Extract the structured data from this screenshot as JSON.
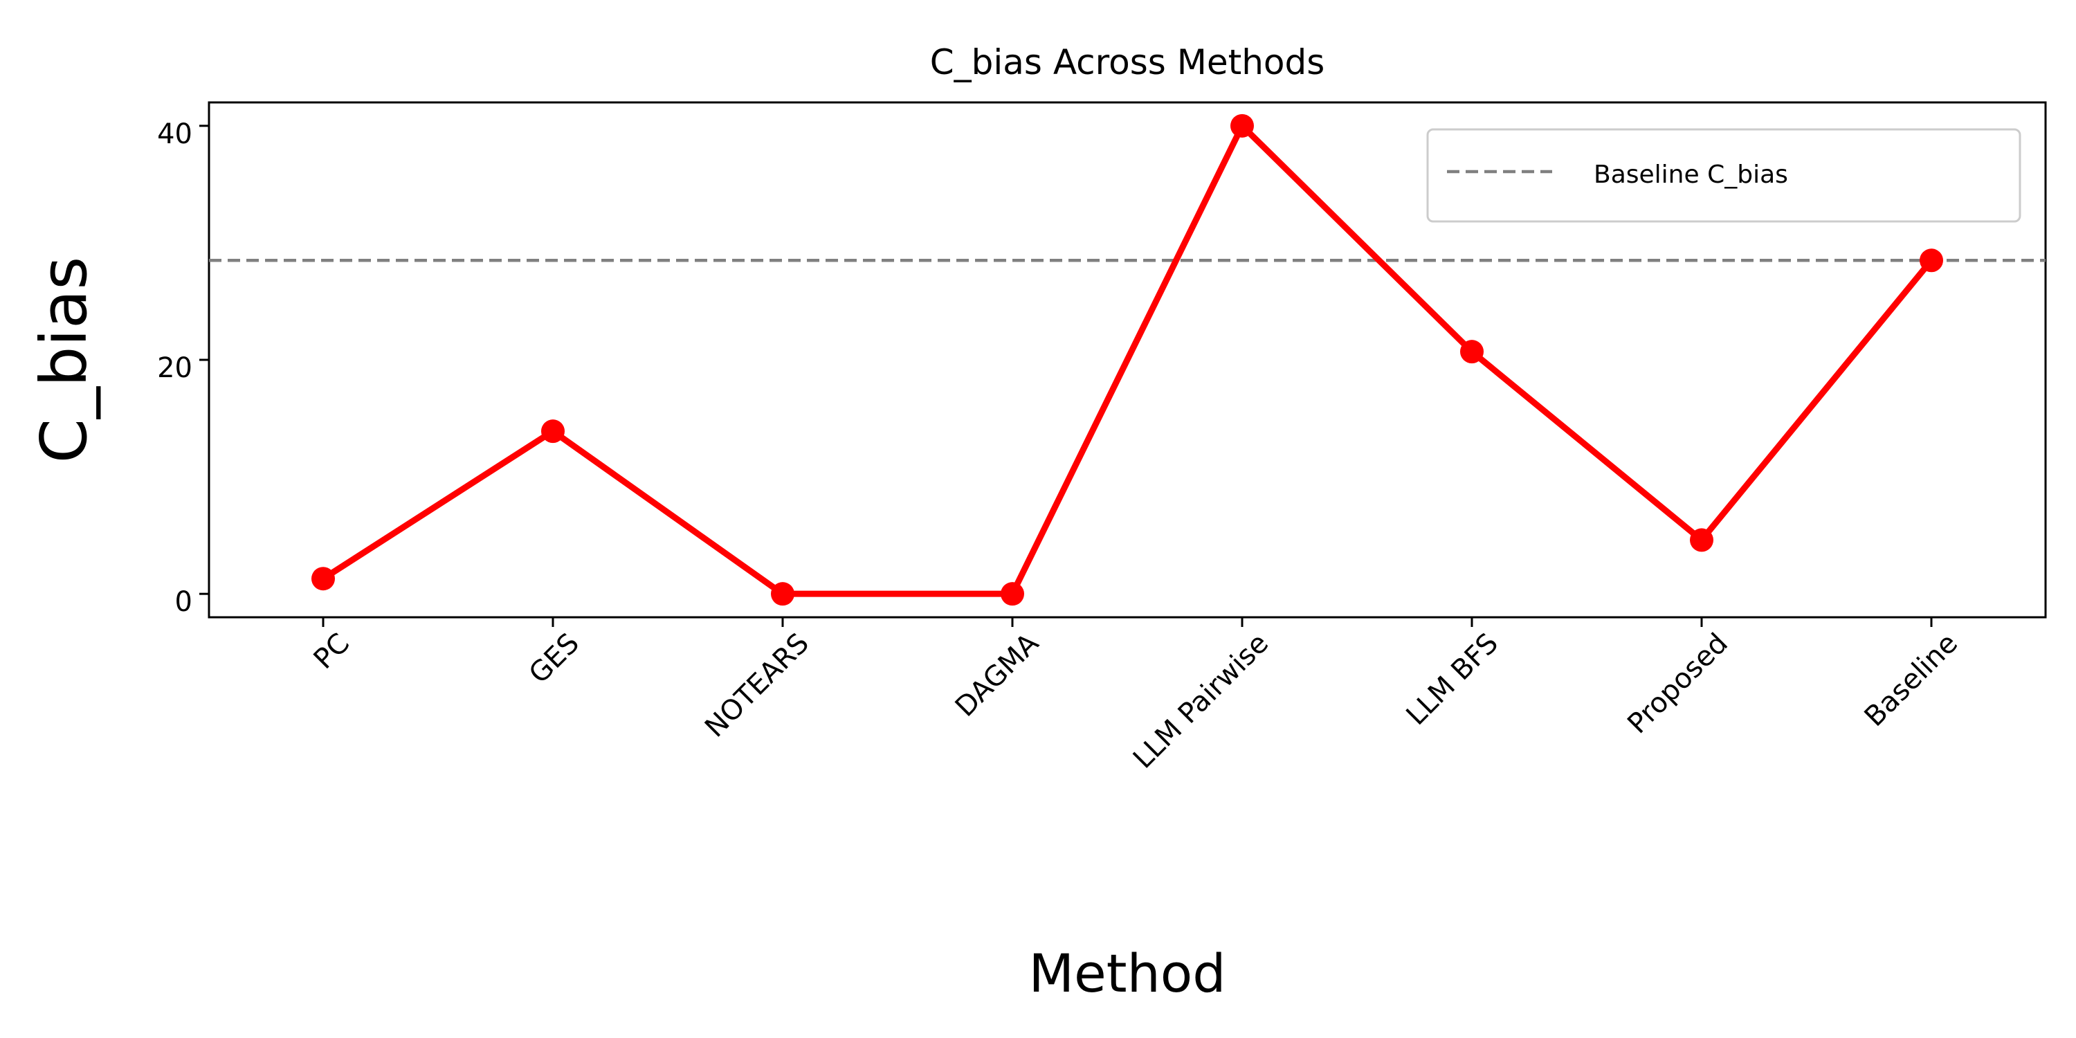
{
  "chart_data": {
    "type": "line",
    "title": "C_bias Across Methods",
    "xlabel": "Method",
    "ylabel": "C_bias",
    "categories": [
      "PC",
      "GES",
      "NOTEARS",
      "DAGMA",
      "LLM Pairwise",
      "LLM BFS",
      "Proposed",
      "Baseline"
    ],
    "series": [
      {
        "values": [
          1.3,
          13.9,
          0.0,
          0.0,
          40.0,
          20.7,
          4.6,
          28.5
        ],
        "color": "#ff0000"
      }
    ],
    "reference_line": {
      "name": "Baseline C_bias",
      "value": 28.5,
      "color": "#808080",
      "style": "dashed"
    },
    "yticks": [
      0,
      20,
      40
    ],
    "ylim": [
      -2,
      42
    ],
    "grid": false,
    "legend_position": "top-right"
  }
}
